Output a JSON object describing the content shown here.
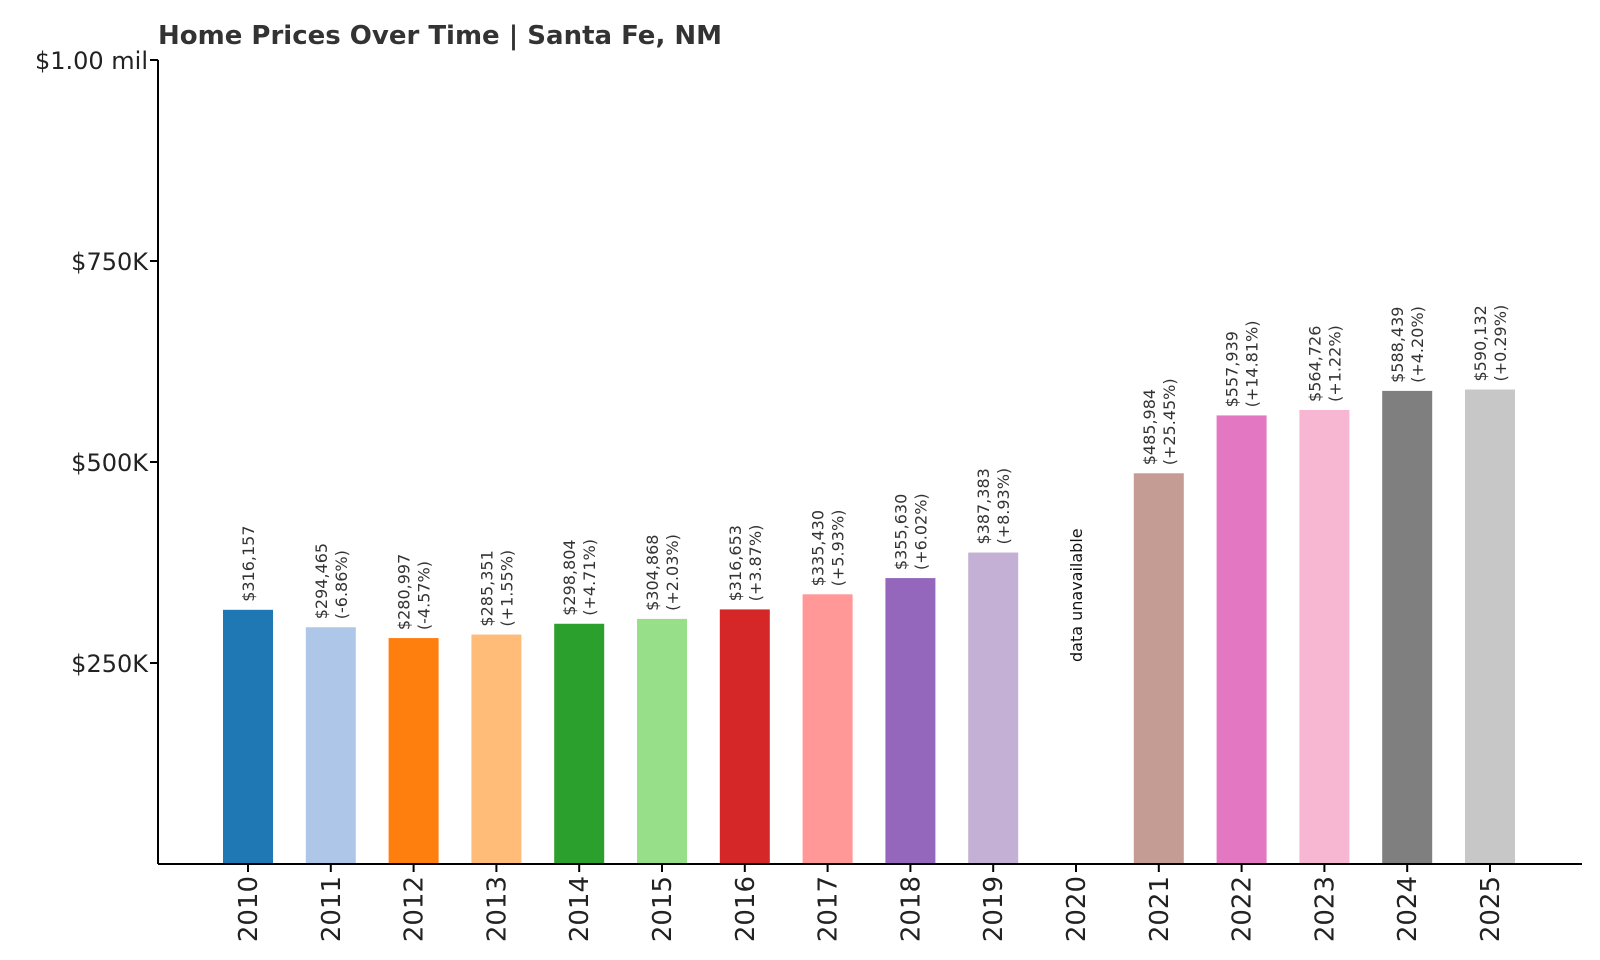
{
  "chart_data": {
    "type": "bar",
    "title": "Home Prices Over Time | Santa Fe, NM",
    "xlabel": "",
    "ylabel": "",
    "ylim": [
      0,
      1000000
    ],
    "yticks": [
      {
        "value": 250000,
        "label": "$250K"
      },
      {
        "value": 500000,
        "label": "$500K"
      },
      {
        "value": 750000,
        "label": "$750K"
      },
      {
        "value": 1000000,
        "label": "$1.00 mil"
      }
    ],
    "categories": [
      "2010",
      "2011",
      "2012",
      "2013",
      "2014",
      "2015",
      "2016",
      "2017",
      "2018",
      "2019",
      "2020",
      "2021",
      "2022",
      "2023",
      "2024",
      "2025"
    ],
    "values": [
      316157,
      294465,
      280997,
      285351,
      298804,
      304868,
      316653,
      335430,
      355630,
      387383,
      null,
      485984,
      557939,
      564726,
      588439,
      590132
    ],
    "value_labels": [
      "$316,157",
      "$294,465",
      "$280,997",
      "$285,351",
      "$298,804",
      "$304,868",
      "$316,653",
      "$335,430",
      "$355,630",
      "$387,383",
      "",
      "$485,984",
      "$557,939",
      "$564,726",
      "$588,439",
      "$590,132"
    ],
    "change_labels": [
      "",
      "(-6.86%)",
      "(-4.57%)",
      "(+1.55%)",
      "(+4.71%)",
      "(+2.03%)",
      "(+3.87%)",
      "(+5.93%)",
      "(+6.02%)",
      "(+8.93%)",
      "",
      "(+25.45%)",
      "(+14.81%)",
      "(+1.22%)",
      "(+4.20%)",
      "(+0.29%)"
    ],
    "missing_label": "data unavailable",
    "colors": [
      "#1f77b4",
      "#aec7e8",
      "#ff7f0e",
      "#ffbb78",
      "#2ca02c",
      "#98df8a",
      "#d62728",
      "#ff9896",
      "#9467bd",
      "#c5b0d5",
      "#8c564b",
      "#c49c94",
      "#e377c2",
      "#f7b6d2",
      "#7f7f7f",
      "#c7c7c7"
    ],
    "grid": false,
    "legend": "none"
  }
}
